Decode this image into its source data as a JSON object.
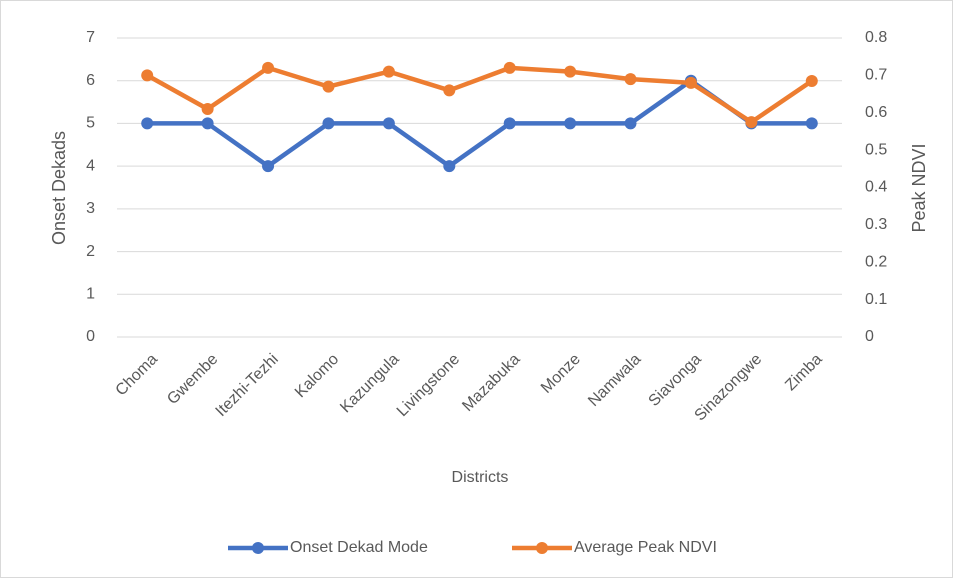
{
  "chart_data": {
    "type": "line",
    "categories": [
      "Choma",
      "Gwembe",
      "Itezhi-Tezhi",
      "Kalomo",
      "Kazungula",
      "Livingstone",
      "Mazabuka",
      "Monze",
      "Namwala",
      "Siavonga",
      "Sinazongwe",
      "Zimba"
    ],
    "series": [
      {
        "name": "Onset Dekad Mode",
        "color": "#4472c4",
        "values": [
          5,
          5,
          4,
          5,
          5,
          4,
          5,
          5,
          5,
          6,
          5,
          5
        ]
      },
      {
        "name": "Average Peak NDVI",
        "color": "#ed7d31",
        "axis": "y2",
        "values": [
          0.7,
          0.61,
          0.72,
          0.67,
          0.71,
          0.66,
          0.72,
          0.71,
          0.69,
          0.68,
          0.575,
          0.685
        ]
      }
    ],
    "x_label": "Districts",
    "y_label": "Onset Dekads",
    "y2_label": "Peak NDVI",
    "ylim": [
      0,
      7
    ],
    "yticks": [
      0,
      1,
      2,
      3,
      4,
      5,
      6,
      7
    ],
    "y2lim": [
      0,
      0.8
    ],
    "y2ticks": [
      0,
      0.1,
      0.2,
      0.3,
      0.4,
      0.5,
      0.6,
      0.7,
      0.8
    ],
    "grid": true,
    "legend": "bottom"
  }
}
